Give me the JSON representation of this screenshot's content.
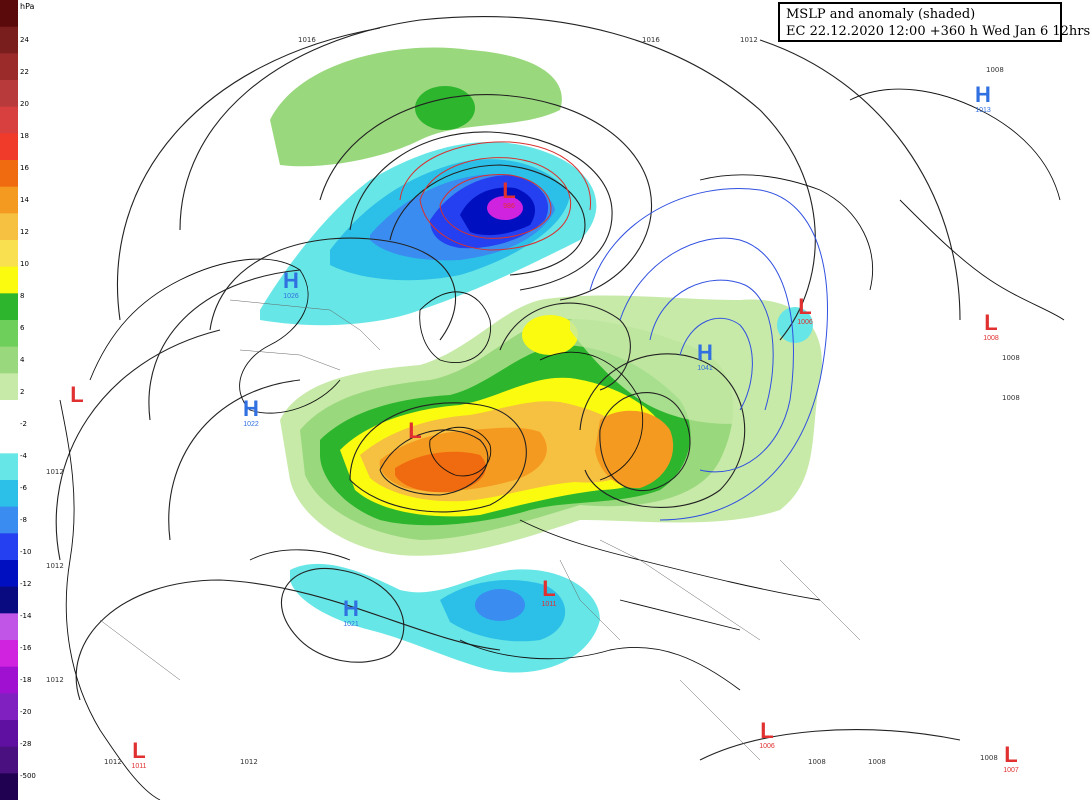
{
  "title": {
    "line1": "MSLP and anomaly (shaded)",
    "line2": "EC 22.12.2020 12:00 +360 h Wed Jan 6 12hrs"
  },
  "legend": {
    "unit": "hPa",
    "ticks": [
      "24",
      "22",
      "20",
      "18",
      "16",
      "14",
      "12",
      "10",
      "8",
      "6",
      "4",
      "2",
      "-2",
      "-4",
      "-6",
      "-8",
      "-10",
      "-12",
      "-14",
      "-16",
      "-18",
      "-20",
      "-28",
      "-500"
    ],
    "colors": [
      "#5a0a0a",
      "#7a1d1d",
      "#9b2b2b",
      "#b83a3a",
      "#d84040",
      "#f03a2a",
      "#f06a10",
      "#f59a20",
      "#f6c040",
      "#f8e050",
      "#fbfb10",
      "#2db52d",
      "#6ecf5a",
      "#9ad87d",
      "#c7eaa8",
      "#ffffff",
      "#ffffff",
      "#66e6e6",
      "#2cc0e8",
      "#3a8cf0",
      "#2440f0",
      "#0010c0",
      "#0a0a80",
      "#c055e8",
      "#d023e0",
      "#a010d0",
      "#8020c0",
      "#6010a0",
      "#4a1080",
      "#200050"
    ]
  },
  "centers": [
    {
      "kind": "H",
      "color": "#3070e0",
      "value": "1026",
      "id": "high-canada-north"
    },
    {
      "kind": "H",
      "color": "#3070e0",
      "value": "1022",
      "id": "high-canada-east"
    },
    {
      "kind": "H",
      "color": "#3070e0",
      "value": "1021",
      "id": "high-atlantic"
    },
    {
      "kind": "H",
      "color": "#3070e0",
      "value": "1013",
      "id": "high-pacific"
    },
    {
      "kind": "H",
      "color": "#3070e0",
      "value": "1041",
      "id": "high-siberia"
    },
    {
      "kind": "L",
      "color": "#e03030",
      "value": "986",
      "id": "low-pacific-arctic"
    },
    {
      "kind": "L",
      "color": "#e03030",
      "value": "",
      "id": "low-greenland"
    },
    {
      "kind": "L",
      "color": "#e03030",
      "value": "1011",
      "id": "low-mediterranean"
    },
    {
      "kind": "L",
      "color": "#e03030",
      "value": "1006",
      "id": "low-east-asia"
    },
    {
      "kind": "L",
      "color": "#e03030",
      "value": "1008",
      "id": "low-japan"
    },
    {
      "kind": "L",
      "color": "#e03030",
      "value": "",
      "id": "low-pacific-west"
    },
    {
      "kind": "L",
      "color": "#e03030",
      "value": "1011",
      "id": "low-south-america"
    },
    {
      "kind": "L",
      "color": "#e03030",
      "value": "1006",
      "id": "low-india"
    },
    {
      "kind": "L",
      "color": "#e03030",
      "value": "1007",
      "id": "low-south-asia"
    }
  ],
  "isobar_labels": [
    "1016",
    "1016",
    "1012",
    "1012",
    "1012",
    "1012",
    "1012",
    "1012",
    "1008",
    "1008",
    "1008",
    "1008",
    "1008",
    "1008"
  ]
}
